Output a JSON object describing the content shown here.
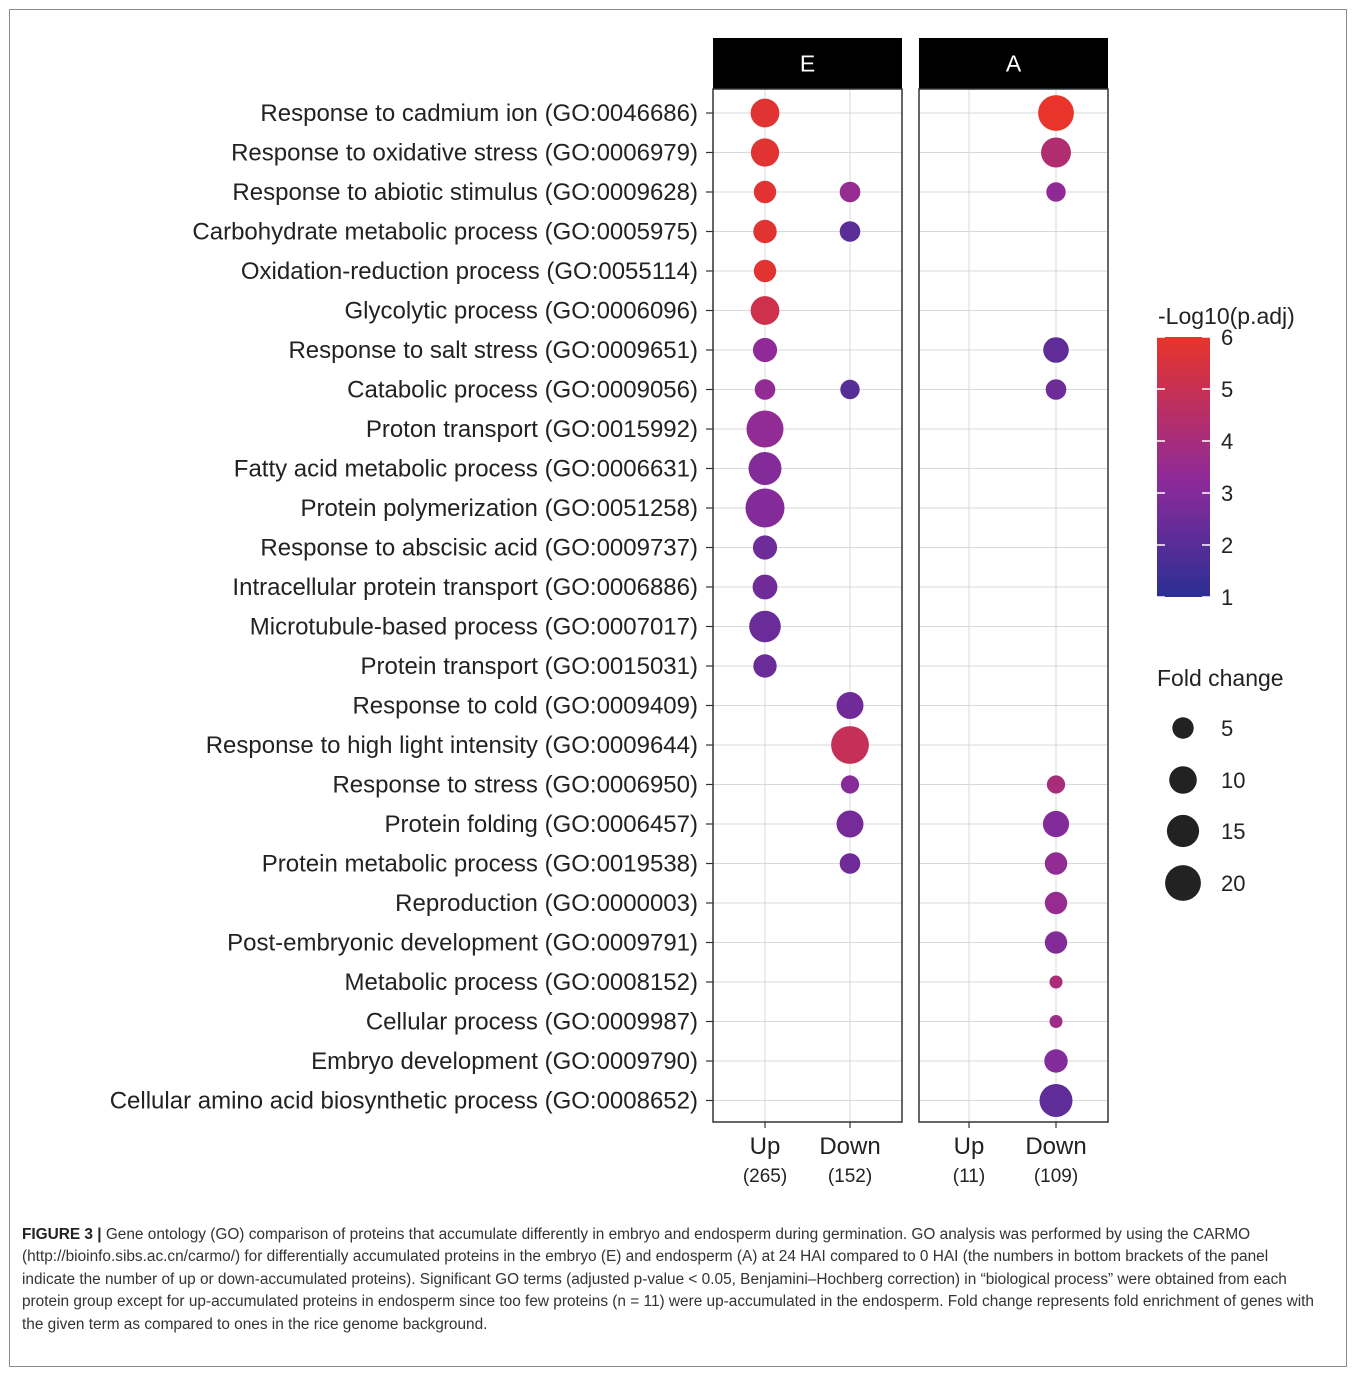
{
  "chart_data": {
    "type": "scatter",
    "panels": [
      "E",
      "A"
    ],
    "x_categories": [
      "Up",
      "Down"
    ],
    "x_counts": {
      "E": [
        "(265)",
        "(152)"
      ],
      "A": [
        "(11)",
        "(109)"
      ]
    },
    "terms": [
      "Response to cadmium ion (GO:0046686)",
      "Response to oxidative stress (GO:0006979)",
      "Response to abiotic stimulus (GO:0009628)",
      "Carbohydrate metabolic process (GO:0005975)",
      "Oxidation-reduction process (GO:0055114)",
      "Glycolytic process (GO:0006096)",
      "Response to salt stress (GO:0009651)",
      "Catabolic process (GO:0009056)",
      "Proton transport (GO:0015992)",
      "Fatty acid metabolic process (GO:0006631)",
      "Protein polymerization (GO:0051258)",
      "Response to abscisic acid (GO:0009737)",
      "Intracellular protein transport (GO:0006886)",
      "Microtubule-based process (GO:0007017)",
      "Protein transport (GO:0015031)",
      "Response to cold (GO:0009409)",
      "Response to high light intensity (GO:0009644)",
      "Response to stress (GO:0006950)",
      "Protein folding (GO:0006457)",
      "Protein metabolic process (GO:0019538)",
      "Reproduction (GO:0000003)",
      "Post-embryonic development (GO:0009791)",
      "Metabolic process (GO:0008152)",
      "Cellular process (GO:0009987)",
      "Embryo development (GO:0009790)",
      "Cellular amino acid biosynthetic process (GO:0008652)"
    ],
    "points": [
      {
        "panel": "E",
        "x": "Up",
        "term": 0,
        "fold_change": 9,
        "neg_log10_padj": 5.8
      },
      {
        "panel": "E",
        "x": "Up",
        "term": 1,
        "fold_change": 8.5,
        "neg_log10_padj": 5.8
      },
      {
        "panel": "E",
        "x": "Up",
        "term": 2,
        "fold_change": 4.5,
        "neg_log10_padj": 5.8
      },
      {
        "panel": "E",
        "x": "Up",
        "term": 3,
        "fold_change": 5,
        "neg_log10_padj": 5.8
      },
      {
        "panel": "E",
        "x": "Up",
        "term": 4,
        "fold_change": 4.5,
        "neg_log10_padj": 5.8
      },
      {
        "panel": "E",
        "x": "Up",
        "term": 5,
        "fold_change": 9,
        "neg_log10_padj": 5.2
      },
      {
        "panel": "E",
        "x": "Up",
        "term": 6,
        "fold_change": 5.5,
        "neg_log10_padj": 3.3
      },
      {
        "panel": "E",
        "x": "Up",
        "term": 7,
        "fold_change": 3.5,
        "neg_log10_padj": 3.4
      },
      {
        "panel": "E",
        "x": "Up",
        "term": 8,
        "fold_change": 17.5,
        "neg_log10_padj": 3.4
      },
      {
        "panel": "E",
        "x": "Up",
        "term": 9,
        "fold_change": 13,
        "neg_log10_padj": 3.0
      },
      {
        "panel": "E",
        "x": "Up",
        "term": 10,
        "fold_change": 20,
        "neg_log10_padj": 3.0
      },
      {
        "panel": "E",
        "x": "Up",
        "term": 11,
        "fold_change": 5.5,
        "neg_log10_padj": 2.5
      },
      {
        "panel": "E",
        "x": "Up",
        "term": 12,
        "fold_change": 6,
        "neg_log10_padj": 2.6
      },
      {
        "panel": "E",
        "x": "Up",
        "term": 13,
        "fold_change": 11.5,
        "neg_log10_padj": 2.4
      },
      {
        "panel": "E",
        "x": "Up",
        "term": 14,
        "fold_change": 5,
        "neg_log10_padj": 2.4
      },
      {
        "panel": "E",
        "x": "Down",
        "term": 2,
        "fold_change": 3.5,
        "neg_log10_padj": 3.5
      },
      {
        "panel": "E",
        "x": "Down",
        "term": 3,
        "fold_change": 3.5,
        "neg_log10_padj": 2.1
      },
      {
        "panel": "E",
        "x": "Down",
        "term": 7,
        "fold_change": 3,
        "neg_log10_padj": 2.0
      },
      {
        "panel": "E",
        "x": "Down",
        "term": 15,
        "fold_change": 7.5,
        "neg_log10_padj": 2.6
      },
      {
        "panel": "E",
        "x": "Down",
        "term": 16,
        "fold_change": 18.5,
        "neg_log10_padj": 4.9
      },
      {
        "panel": "E",
        "x": "Down",
        "term": 17,
        "fold_change": 2.5,
        "neg_log10_padj": 3.1
      },
      {
        "panel": "E",
        "x": "Down",
        "term": 18,
        "fold_change": 7.5,
        "neg_log10_padj": 2.7
      },
      {
        "panel": "E",
        "x": "Down",
        "term": 19,
        "fold_change": 3.5,
        "neg_log10_padj": 2.6
      },
      {
        "panel": "A",
        "x": "Down",
        "term": 0,
        "fold_change": 16,
        "neg_log10_padj": 6.0
      },
      {
        "panel": "A",
        "x": "Down",
        "term": 1,
        "fold_change": 10,
        "neg_log10_padj": 4.3
      },
      {
        "panel": "A",
        "x": "Down",
        "term": 2,
        "fold_change": 3,
        "neg_log10_padj": 3.3
      },
      {
        "panel": "A",
        "x": "Down",
        "term": 6,
        "fold_change": 6.5,
        "neg_log10_padj": 2.2
      },
      {
        "panel": "A",
        "x": "Down",
        "term": 7,
        "fold_change": 3.5,
        "neg_log10_padj": 2.5
      },
      {
        "panel": "A",
        "x": "Down",
        "term": 17,
        "fold_change": 2.5,
        "neg_log10_padj": 4.0
      },
      {
        "panel": "A",
        "x": "Down",
        "term": 18,
        "fold_change": 7,
        "neg_log10_padj": 3.0
      },
      {
        "panel": "A",
        "x": "Down",
        "term": 19,
        "fold_change": 4.5,
        "neg_log10_padj": 3.4
      },
      {
        "panel": "A",
        "x": "Down",
        "term": 20,
        "fold_change": 4.5,
        "neg_log10_padj": 3.5
      },
      {
        "panel": "A",
        "x": "Down",
        "term": 21,
        "fold_change": 4.5,
        "neg_log10_padj": 3.0
      },
      {
        "panel": "A",
        "x": "Down",
        "term": 22,
        "fold_change": 1.2,
        "neg_log10_padj": 4.1
      },
      {
        "panel": "A",
        "x": "Down",
        "term": 23,
        "fold_change": 1.2,
        "neg_log10_padj": 3.7
      },
      {
        "panel": "A",
        "x": "Down",
        "term": 24,
        "fold_change": 5,
        "neg_log10_padj": 3.0
      },
      {
        "panel": "A",
        "x": "Down",
        "term": 25,
        "fold_change": 13,
        "neg_log10_padj": 2.2
      }
    ],
    "color_legend": {
      "title": "-Log10(p.adj)",
      "min": 1,
      "max": 6,
      "ticks": [
        6,
        5,
        4,
        3,
        2,
        1
      ],
      "low_color": "#2b2f94",
      "mid_color": "#8e2a9a",
      "high_color": "#e8342a"
    },
    "size_legend": {
      "title": "Fold change",
      "values": [
        5,
        10,
        15,
        20
      ]
    },
    "grid": true,
    "legend_position": "right"
  },
  "caption": {
    "label": "FIGURE 3 |",
    "text": " Gene ontology (GO) comparison of proteins that accumulate differently in embryo and endosperm during germination. GO analysis was performed by using the CARMO (http://bioinfo.sibs.ac.cn/carmo/) for differentially accumulated proteins in the embryo (E) and endosperm (A) at 24 HAI compared to 0 HAI (the numbers in bottom brackets of the panel indicate the number of up or down-accumulated proteins). Significant GO terms (adjusted p-value < 0.05, Benjamini–Hochberg correction) in “biological process” were obtained from each protein group except for up-accumulated proteins in endosperm since too few proteins (n = 11) were up-accumulated in the endosperm. Fold change represents fold enrichment of genes with the given term as compared to ones in the rice genome background."
  },
  "colors": {
    "strip_fill": "#000000",
    "panel_border": "#333333",
    "gridline": "#d9d9d9"
  }
}
